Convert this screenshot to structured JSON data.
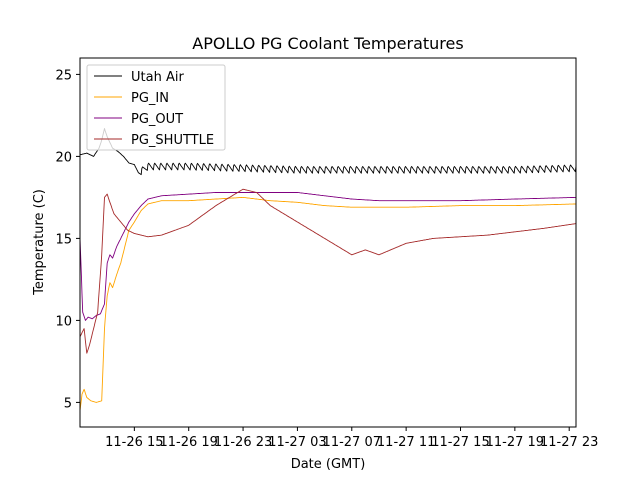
{
  "chart_data": {
    "type": "line",
    "title": "APOLLO PG Coolant Temperatures",
    "xlabel": "Date (GMT)",
    "ylabel": "Temperature (C)",
    "x_unit": "hours since 11-26 11:00 GMT",
    "xlim": [
      0,
      36.5
    ],
    "ylim": [
      3.5,
      26
    ],
    "x_ticks": [
      {
        "value": 4,
        "label": "11-26 15"
      },
      {
        "value": 8,
        "label": "11-26 19"
      },
      {
        "value": 12,
        "label": "11-26 23"
      },
      {
        "value": 16,
        "label": "11-27 03"
      },
      {
        "value": 20,
        "label": "11-27 07"
      },
      {
        "value": 24,
        "label": "11-27 11"
      },
      {
        "value": 28,
        "label": "11-27 15"
      },
      {
        "value": 32,
        "label": "11-27 19"
      },
      {
        "value": 36,
        "label": "11-27 23"
      }
    ],
    "y_ticks": [
      {
        "value": 5,
        "label": "5"
      },
      {
        "value": 10,
        "label": "10"
      },
      {
        "value": 15,
        "label": "15"
      },
      {
        "value": 20,
        "label": "20"
      },
      {
        "value": 25,
        "label": "25"
      }
    ],
    "legend_position": "top-left",
    "series": [
      {
        "name": "Utah Air",
        "color": "#000000",
        "oscillation": 0.45,
        "x": [
          0,
          0.5,
          1.0,
          1.4,
          1.6,
          1.8,
          2.0,
          2.4,
          2.8,
          3.2,
          3.6,
          4.0,
          4.3,
          5,
          8,
          12,
          16,
          20,
          24,
          28,
          32,
          36.5
        ],
        "y": [
          20.1,
          20.2,
          20.0,
          20.5,
          21.0,
          21.7,
          21.2,
          20.5,
          20.3,
          20.0,
          19.6,
          19.5,
          19.0,
          19.4,
          19.4,
          19.3,
          19.2,
          19.2,
          19.2,
          19.2,
          19.2,
          19.3
        ]
      },
      {
        "name": "PG_IN",
        "color": "#ffa500",
        "oscillation": 0,
        "x": [
          0,
          0.15,
          0.3,
          0.5,
          0.8,
          1.2,
          1.6,
          1.8,
          2.0,
          2.2,
          2.4,
          2.7,
          3.0,
          3.3,
          3.6,
          4.0,
          4.5,
          5.0,
          6.0,
          8.0,
          10.0,
          12.0,
          14.0,
          16.0,
          18.0,
          20.0,
          22.0,
          24.0,
          28.0,
          32.0,
          36.5
        ],
        "y": [
          4.5,
          5.5,
          5.8,
          5.3,
          5.1,
          5.0,
          5.1,
          9.5,
          11.5,
          12.3,
          12.0,
          12.8,
          13.5,
          14.5,
          15.5,
          16.0,
          16.7,
          17.1,
          17.3,
          17.3,
          17.4,
          17.5,
          17.3,
          17.2,
          17.0,
          16.9,
          16.9,
          16.9,
          17.0,
          17.0,
          17.1
        ]
      },
      {
        "name": "PG_OUT",
        "color": "#800080",
        "oscillation": 0,
        "x": [
          0,
          0.2,
          0.4,
          0.6,
          0.9,
          1.2,
          1.5,
          1.8,
          2.0,
          2.2,
          2.4,
          2.7,
          3.0,
          3.3,
          3.6,
          4.0,
          4.5,
          5.0,
          6.0,
          8.0,
          10.0,
          12.0,
          14.0,
          16.0,
          18.0,
          20.0,
          22.0,
          24.0,
          28.0,
          32.0,
          36.5
        ],
        "y": [
          15.0,
          10.5,
          10.0,
          10.2,
          10.1,
          10.3,
          10.4,
          11.0,
          13.5,
          14.0,
          13.8,
          14.5,
          15.0,
          15.5,
          16.0,
          16.5,
          17.0,
          17.4,
          17.6,
          17.7,
          17.8,
          17.8,
          17.8,
          17.8,
          17.6,
          17.4,
          17.3,
          17.3,
          17.3,
          17.4,
          17.5
        ]
      },
      {
        "name": "PG_SHUTTLE",
        "color": "#a52a2a",
        "oscillation": 0,
        "x": [
          0,
          0.3,
          0.5,
          0.7,
          1.0,
          1.3,
          1.6,
          1.8,
          2.0,
          2.2,
          2.5,
          3.0,
          3.5,
          4.0,
          4.5,
          5.0,
          6.0,
          8.0,
          10.0,
          12.0,
          13.0,
          14.0,
          16.0,
          18.0,
          19.0,
          20.0,
          21.0,
          22.0,
          24.0,
          26.0,
          28.0,
          30.0,
          32.0,
          34.0,
          36.5
        ],
        "y": [
          9.0,
          9.5,
          8.0,
          8.5,
          9.5,
          10.5,
          14.0,
          17.5,
          17.7,
          17.2,
          16.5,
          16.0,
          15.5,
          15.3,
          15.2,
          15.1,
          15.2,
          15.8,
          17.0,
          18.0,
          17.8,
          17.0,
          16.0,
          15.0,
          14.5,
          14.0,
          14.3,
          14.0,
          14.7,
          15.0,
          15.1,
          15.2,
          15.4,
          15.6,
          15.9
        ]
      }
    ]
  }
}
